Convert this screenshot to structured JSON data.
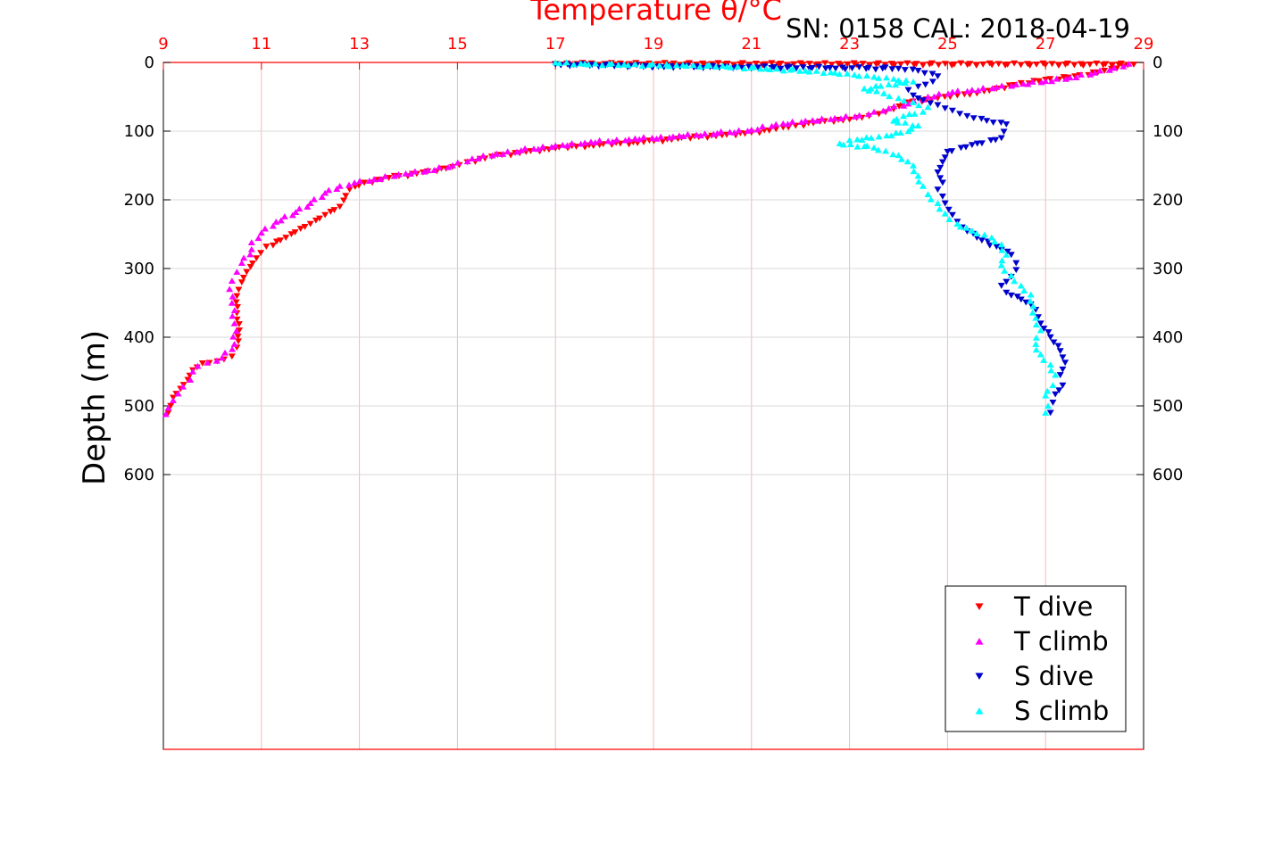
{
  "chart_data": {
    "type": "scatter",
    "title": "Temperature θ/°C",
    "subtitle": "SN: 0158  CAL: 2018-04-19",
    "xlabel": "Temperature θ/°C",
    "ylabel": "Depth (m)",
    "xlim": [
      9,
      29
    ],
    "ylim": [
      0,
      1000
    ],
    "y_reversed": true,
    "x_ticks": [
      "9",
      "11",
      "13",
      "15",
      "17",
      "19",
      "21",
      "23",
      "25",
      "27",
      "29"
    ],
    "y_ticks": [
      "0",
      "100",
      "200",
      "300",
      "400",
      "500",
      "600"
    ],
    "grid": true,
    "legend_position": "bottom-right",
    "colors": {
      "axis_top": "#ff0000",
      "axis_bottom": "#ff0000",
      "frame": "#000000",
      "grid_x": "#f5b8b8",
      "grid_y": "#d9d9d9"
    },
    "series": [
      {
        "name": "T dive",
        "marker": "triangle-down",
        "color": "#ff0000",
        "points": [
          [
            17.0,
            2
          ],
          [
            28.8,
            3
          ],
          [
            28.6,
            6
          ],
          [
            28.2,
            12
          ],
          [
            27.6,
            20
          ],
          [
            27.0,
            25
          ],
          [
            26.5,
            30
          ],
          [
            26.0,
            38
          ],
          [
            25.6,
            45
          ],
          [
            25.2,
            48
          ],
          [
            24.8,
            52
          ],
          [
            24.2,
            58
          ],
          [
            23.9,
            68
          ],
          [
            23.6,
            75
          ],
          [
            23.4,
            78
          ],
          [
            23.0,
            83
          ],
          [
            22.4,
            86
          ],
          [
            21.9,
            92
          ],
          [
            21.5,
            97
          ],
          [
            21.0,
            102
          ],
          [
            20.4,
            106
          ],
          [
            19.5,
            111
          ],
          [
            18.8,
            116
          ],
          [
            17.9,
            120
          ],
          [
            17.0,
            125
          ],
          [
            16.4,
            130
          ],
          [
            15.7,
            137
          ],
          [
            15.2,
            145
          ],
          [
            14.9,
            152
          ],
          [
            14.3,
            160
          ],
          [
            13.6,
            168
          ],
          [
            13.1,
            175
          ],
          [
            12.8,
            185
          ],
          [
            12.6,
            210
          ],
          [
            12.3,
            222
          ],
          [
            12.0,
            235
          ],
          [
            11.8,
            242
          ],
          [
            11.5,
            255
          ],
          [
            11.1,
            268
          ],
          [
            10.9,
            285
          ],
          [
            10.7,
            305
          ],
          [
            10.6,
            320
          ],
          [
            10.5,
            340
          ],
          [
            10.5,
            365
          ],
          [
            10.55,
            390
          ],
          [
            10.5,
            415
          ],
          [
            10.4,
            428
          ],
          [
            10.1,
            435
          ],
          [
            9.8,
            438
          ],
          [
            9.6,
            448
          ],
          [
            9.5,
            462
          ],
          [
            9.35,
            475
          ],
          [
            9.2,
            488
          ],
          [
            9.15,
            500
          ],
          [
            9.1,
            510
          ]
        ]
      },
      {
        "name": "T climb",
        "marker": "triangle-up",
        "color": "#ff00ff",
        "points": [
          [
            28.7,
            2
          ],
          [
            28.4,
            8
          ],
          [
            28.0,
            15
          ],
          [
            27.5,
            22
          ],
          [
            27.0,
            27
          ],
          [
            26.4,
            32
          ],
          [
            26.0,
            36
          ],
          [
            25.5,
            40
          ],
          [
            25.1,
            43
          ],
          [
            24.6,
            50
          ],
          [
            24.2,
            60
          ],
          [
            23.8,
            67
          ],
          [
            23.5,
            72
          ],
          [
            23.2,
            77
          ],
          [
            22.7,
            81
          ],
          [
            22.1,
            85
          ],
          [
            21.5,
            90
          ],
          [
            21.0,
            98
          ],
          [
            20.3,
            103
          ],
          [
            19.4,
            108
          ],
          [
            18.5,
            112
          ],
          [
            17.6,
            117
          ],
          [
            17.0,
            121
          ],
          [
            16.3,
            128
          ],
          [
            15.8,
            133
          ],
          [
            15.3,
            140
          ],
          [
            14.9,
            150
          ],
          [
            14.4,
            157
          ],
          [
            13.8,
            163
          ],
          [
            13.3,
            170
          ],
          [
            12.9,
            175
          ],
          [
            12.6,
            180
          ],
          [
            12.3,
            190
          ],
          [
            12.0,
            205
          ],
          [
            11.7,
            218
          ],
          [
            11.3,
            232
          ],
          [
            11.0,
            248
          ],
          [
            10.8,
            262
          ],
          [
            10.8,
            272
          ],
          [
            10.6,
            292
          ],
          [
            10.5,
            305
          ],
          [
            10.4,
            318
          ],
          [
            10.35,
            330
          ],
          [
            10.4,
            350
          ],
          [
            10.45,
            380
          ],
          [
            10.45,
            410
          ],
          [
            10.2,
            430
          ],
          [
            9.9,
            437
          ],
          [
            9.7,
            442
          ],
          [
            9.6,
            450
          ],
          [
            9.55,
            462
          ],
          [
            9.4,
            472
          ],
          [
            9.3,
            482
          ],
          [
            9.2,
            492
          ],
          [
            9.1,
            503
          ],
          [
            9.05,
            512
          ]
        ]
      },
      {
        "name": "S dive",
        "marker": "triangle-down",
        "color": "#0000cc",
        "points": [
          [
            17.0,
            3
          ],
          [
            19.1,
            6
          ],
          [
            20.7,
            7
          ],
          [
            22.6,
            8
          ],
          [
            24.0,
            9
          ],
          [
            24.4,
            12
          ],
          [
            24.8,
            20
          ],
          [
            24.7,
            28
          ],
          [
            24.4,
            35
          ],
          [
            24.2,
            40
          ],
          [
            24.3,
            48
          ],
          [
            24.5,
            55
          ],
          [
            24.8,
            62
          ],
          [
            25.1,
            70
          ],
          [
            25.4,
            78
          ],
          [
            25.8,
            85
          ],
          [
            26.2,
            90
          ],
          [
            26.1,
            110
          ],
          [
            25.5,
            120
          ],
          [
            25.0,
            130
          ],
          [
            24.9,
            145
          ],
          [
            24.8,
            160
          ],
          [
            24.9,
            175
          ],
          [
            24.8,
            185
          ],
          [
            24.9,
            195
          ],
          [
            24.95,
            205
          ],
          [
            25.1,
            222
          ],
          [
            25.3,
            240
          ],
          [
            25.6,
            255
          ],
          [
            26.0,
            268
          ],
          [
            26.3,
            280
          ],
          [
            26.4,
            292
          ],
          [
            26.4,
            302
          ],
          [
            26.3,
            312
          ],
          [
            26.1,
            325
          ],
          [
            26.2,
            335
          ],
          [
            26.5,
            345
          ],
          [
            26.7,
            352
          ],
          [
            26.8,
            360
          ],
          [
            26.9,
            380
          ],
          [
            27.1,
            400
          ],
          [
            27.3,
            420
          ],
          [
            27.4,
            437
          ],
          [
            27.3,
            455
          ],
          [
            27.35,
            470
          ],
          [
            27.2,
            483
          ],
          [
            27.15,
            495
          ],
          [
            27.1,
            510
          ]
        ]
      },
      {
        "name": "S climb",
        "marker": "triangle-up",
        "color": "#00ffff",
        "points": [
          [
            17.0,
            0
          ],
          [
            17.6,
            2
          ],
          [
            18.4,
            3
          ],
          [
            19.6,
            4
          ],
          [
            20.5,
            6
          ],
          [
            21.3,
            9
          ],
          [
            22.1,
            12
          ],
          [
            22.7,
            15
          ],
          [
            23.1,
            18
          ],
          [
            23.5,
            21
          ],
          [
            23.9,
            24
          ],
          [
            24.3,
            28
          ],
          [
            23.8,
            32
          ],
          [
            23.3,
            38
          ],
          [
            23.7,
            45
          ],
          [
            24.0,
            52
          ],
          [
            24.3,
            58
          ],
          [
            24.6,
            65
          ],
          [
            24.5,
            72
          ],
          [
            24.1,
            78
          ],
          [
            23.9,
            85
          ],
          [
            24.4,
            92
          ],
          [
            24.2,
            100
          ],
          [
            23.6,
            108
          ],
          [
            23.0,
            113
          ],
          [
            22.8,
            118
          ],
          [
            23.5,
            124
          ],
          [
            24.0,
            135
          ],
          [
            24.3,
            150
          ],
          [
            24.4,
            165
          ],
          [
            24.5,
            180
          ],
          [
            24.6,
            192
          ],
          [
            24.8,
            205
          ],
          [
            24.95,
            220
          ],
          [
            25.2,
            235
          ],
          [
            25.5,
            245
          ],
          [
            25.9,
            255
          ],
          [
            26.1,
            265
          ],
          [
            26.2,
            280
          ],
          [
            26.1,
            295
          ],
          [
            26.3,
            310
          ],
          [
            26.5,
            325
          ],
          [
            26.7,
            338
          ],
          [
            26.75,
            355
          ],
          [
            26.8,
            372
          ],
          [
            26.9,
            390
          ],
          [
            26.8,
            410
          ],
          [
            26.9,
            425
          ],
          [
            27.1,
            440
          ],
          [
            27.2,
            455
          ],
          [
            27.15,
            470
          ],
          [
            27.0,
            485
          ],
          [
            27.05,
            500
          ],
          [
            27.0,
            510
          ]
        ]
      }
    ]
  }
}
